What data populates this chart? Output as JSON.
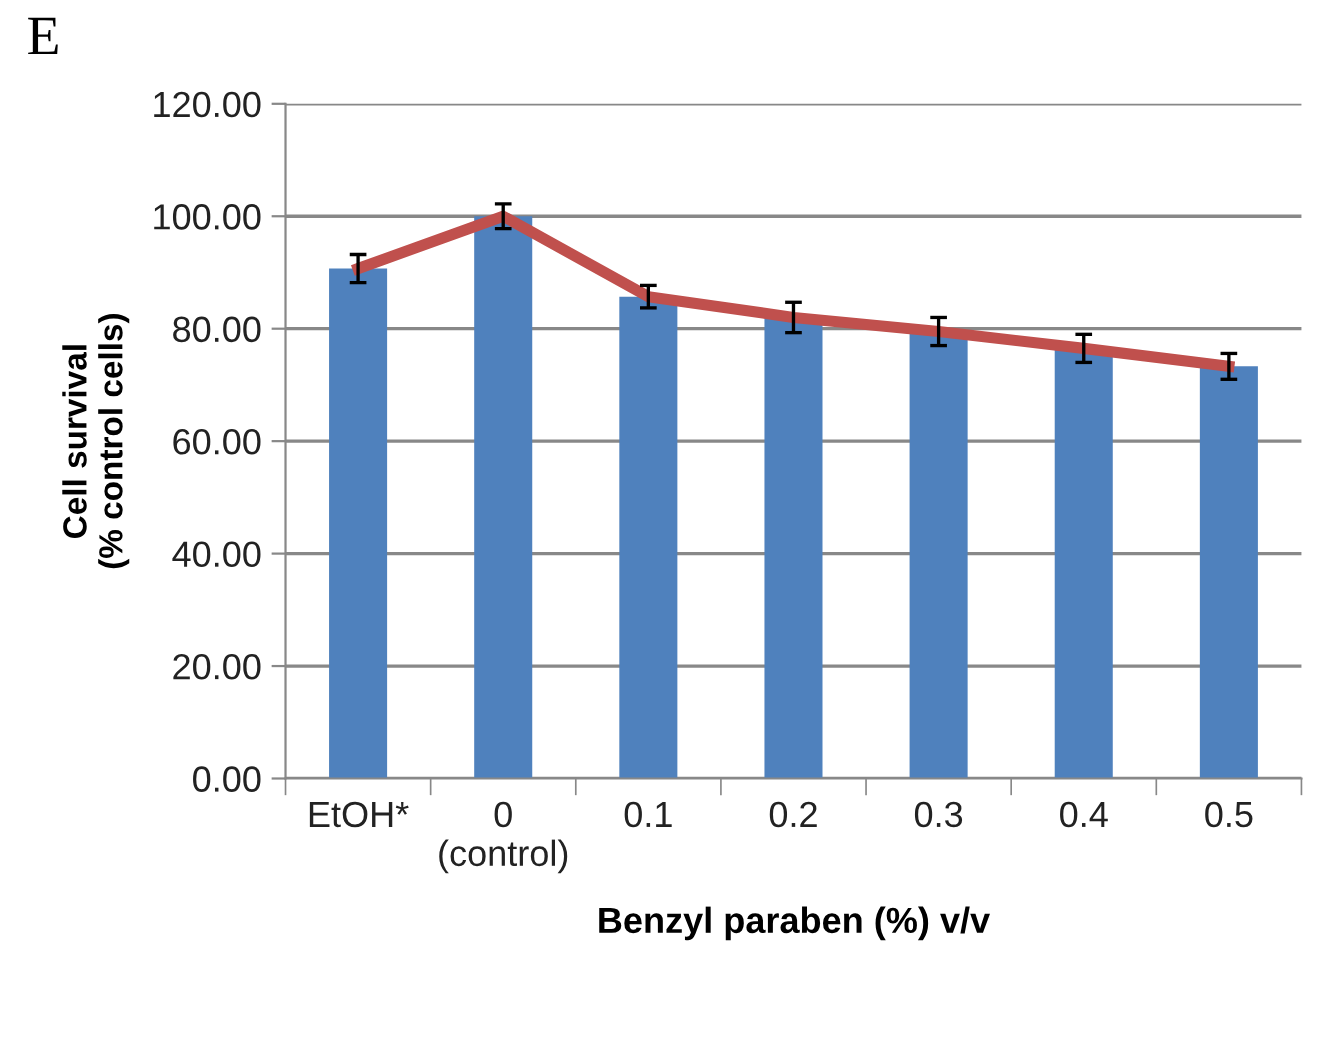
{
  "chart_data": {
    "type": "bar",
    "annotations": [
      "E"
    ],
    "xlabel": "Benzyl paraben (%) v/v",
    "ylabel": "Cell survival\n(% control cells)",
    "categories": [
      "EtOH*",
      "0\n(control)",
      "0.1",
      "0.2",
      "0.3",
      "0.4",
      "0.5"
    ],
    "series": [
      {
        "color": "#4f81bd",
        "values": [
          90.7,
          100,
          85.7,
          82.0,
          79.5,
          76.5,
          73.3
        ],
        "errors": [
          2.5,
          2.2,
          2.0,
          2.7,
          2.5,
          2.5,
          2.3
        ]
      },
      {
        "type": "line",
        "color": "#c0504d",
        "values": [
          90.7,
          100,
          85.7,
          82.0,
          79.5,
          76.5,
          73.3
        ]
      }
    ],
    "ylim": [
      0,
      120
    ],
    "yticks": [
      {
        "value": 0,
        "label": "0.00"
      },
      {
        "value": 20,
        "label": "20.00"
      },
      {
        "value": 40,
        "label": "40.00"
      },
      {
        "value": 60,
        "label": "60.00"
      },
      {
        "value": 80,
        "label": "80.00"
      },
      {
        "value": 100,
        "label": "100.00"
      },
      {
        "value": 120,
        "label": "120.00"
      }
    ],
    "grid": "y",
    "legend": false
  }
}
